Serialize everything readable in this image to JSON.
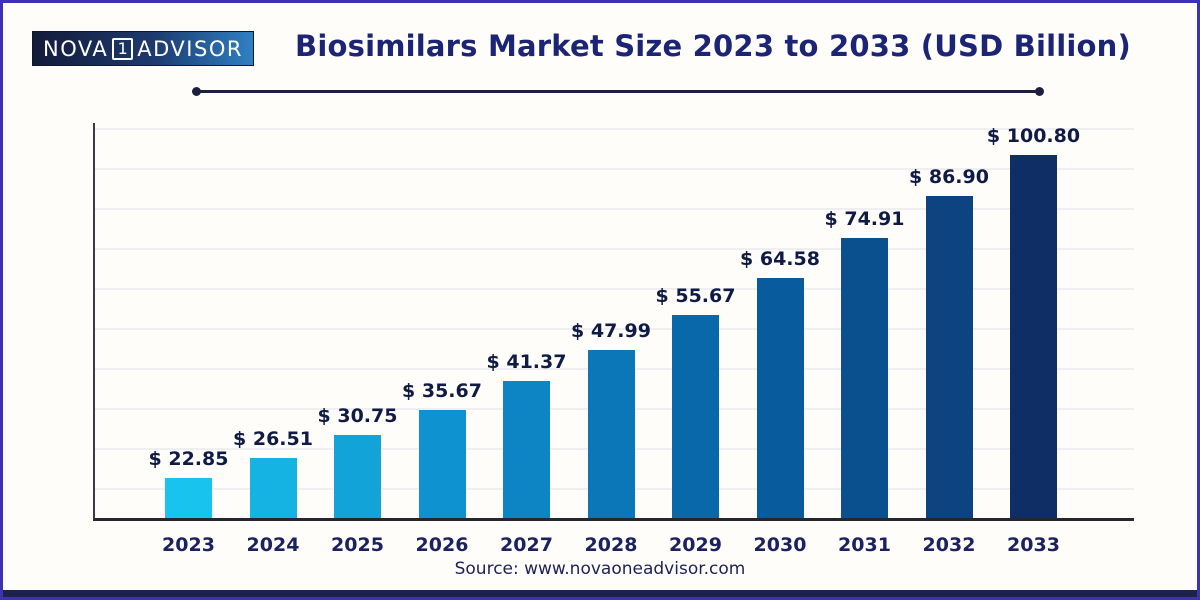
{
  "brand": {
    "name_left": "NOVA",
    "number": "1",
    "name_right": "ADVISOR"
  },
  "header": {
    "title": "Biosimilars Market Size 2023 to 2033 (USD Billion)"
  },
  "source": {
    "text": "Source: www.novaoneadvisor.com"
  },
  "chart_data": {
    "type": "bar",
    "title": "Biosimilars Market Size 2023 to 2033 (USD Billion)",
    "unit": "USD Billion",
    "categories": [
      "2023",
      "2024",
      "2025",
      "2026",
      "2027",
      "2028",
      "2029",
      "2030",
      "2031",
      "2032",
      "2033"
    ],
    "values": [
      22.85,
      26.51,
      30.75,
      35.67,
      41.37,
      47.99,
      55.67,
      64.58,
      74.91,
      86.9,
      100.8
    ],
    "labels": [
      "$ 22.85",
      "$ 26.51",
      "$ 30.75",
      "$ 35.67",
      "$ 41.37",
      "$ 47.99",
      "$ 55.67",
      "$ 64.58",
      "$ 74.91",
      "$ 86.90",
      "$ 100.80"
    ],
    "value_prefix": "$",
    "xlabel": "",
    "ylabel": "",
    "ylim": [
      0,
      110
    ],
    "grid": "horizontal-light",
    "legend": "none",
    "bar_colors": [
      "#18c3ee",
      "#15b3e3",
      "#12a3d9",
      "#0f93d0",
      "#0d84c4",
      "#0b76b8",
      "#0968aa",
      "#085b9c",
      "#0a4f8e",
      "#0d4380",
      "#102e66"
    ],
    "colors": {
      "title_text": "#1b2475",
      "value_label_text": "#101b45",
      "axis_label_text": "#1c2160",
      "page_border": "#3f31b5",
      "footer_strip": "#1c2152",
      "divider": "#1c2040",
      "gridline": "#efeef1",
      "logo_gradient_start": "#141b3a",
      "logo_gradient_end": "#2f80c3"
    }
  }
}
